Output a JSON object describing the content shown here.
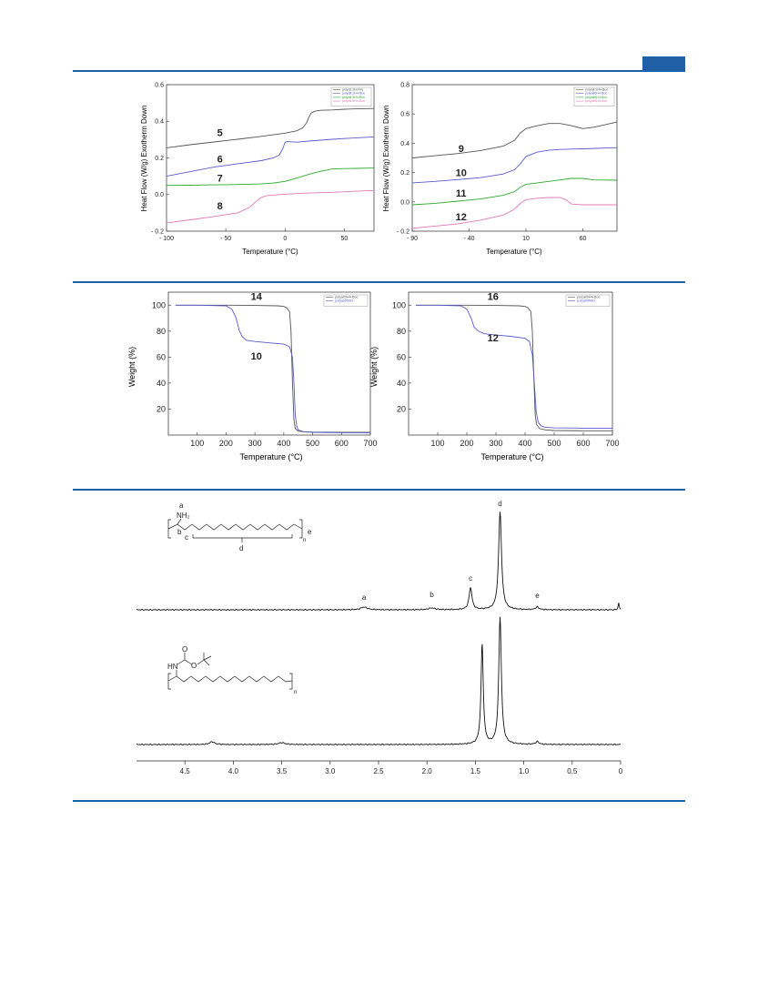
{
  "header": {
    "accent_color": "#1f5fa6"
  },
  "chart_data": [
    {
      "type": "line",
      "id": "dsc-left",
      "xlabel": "Temperature (°C)",
      "ylabel": "Heat Flow (W/g) Exotherm Down",
      "xlim": [
        -100,
        75
      ],
      "ylim": [
        -0.2,
        0.6
      ],
      "xticks": [
        -100,
        -50,
        0,
        50
      ],
      "yticks": [
        -0.2,
        0.0,
        0.2,
        0.4,
        0.6
      ],
      "xtick_labels": [
        "- 100",
        "- 50",
        "0",
        "50"
      ],
      "ytick_labels": [
        "- 0.2",
        "0.0",
        "0.2",
        "0.4",
        "0.6"
      ],
      "legend_position": "top-right",
      "series": [
        {
          "name": "poly(U.3H-Hn)",
          "label": "5",
          "label_at": [
            -55,
            0.32
          ],
          "color": "#555555",
          "x": [
            -100,
            -80,
            -60,
            -40,
            -20,
            0,
            10,
            15,
            18,
            20,
            22,
            25,
            30,
            40,
            50,
            60,
            75
          ],
          "y": [
            0.255,
            0.272,
            0.287,
            0.302,
            0.318,
            0.335,
            0.348,
            0.365,
            0.39,
            0.42,
            0.445,
            0.455,
            0.46,
            0.462,
            0.466,
            0.468,
            0.47
          ]
        },
        {
          "name": "polyall.1H4-Boc",
          "label": "6",
          "label_at": [
            -55,
            0.175
          ],
          "color": "#5a5acc",
          "x": [
            -100,
            -80,
            -60,
            -40,
            -20,
            -10,
            -5,
            -2,
            0,
            2,
            5,
            10,
            20,
            30,
            40,
            50,
            60,
            75
          ],
          "y": [
            0.1,
            0.125,
            0.15,
            0.168,
            0.185,
            0.2,
            0.215,
            0.25,
            0.285,
            0.29,
            0.288,
            0.286,
            0.292,
            0.297,
            0.302,
            0.306,
            0.31,
            0.315
          ]
        },
        {
          "name": "polyall.3H4-Boc",
          "label": "7",
          "label_at": [
            -55,
            0.07
          ],
          "color": "#2eaa2e",
          "x": [
            -100,
            -80,
            -60,
            -40,
            -20,
            -10,
            0,
            10,
            20,
            30,
            40,
            50,
            60,
            75
          ],
          "y": [
            0.05,
            0.051,
            0.053,
            0.055,
            0.058,
            0.063,
            0.072,
            0.09,
            0.11,
            0.127,
            0.14,
            0.142,
            0.143,
            0.145
          ]
        },
        {
          "name": "polyall.6H4-Boc",
          "label": "8",
          "label_at": [
            -55,
            -0.08
          ],
          "color": "#e07ab4",
          "x": [
            -100,
            -80,
            -60,
            -40,
            -30,
            -25,
            -20,
            -15,
            -10,
            0,
            20,
            40,
            60,
            75
          ],
          "y": [
            -0.155,
            -0.138,
            -0.12,
            -0.1,
            -0.07,
            -0.04,
            -0.015,
            -0.005,
            -0.003,
            0.002,
            0.008,
            0.012,
            0.018,
            0.022
          ]
        }
      ]
    },
    {
      "type": "line",
      "id": "dsc-right",
      "xlabel": "Temperature (°C)",
      "ylabel": "Heat Flow (W/g) Exotherm Down",
      "xlim": [
        -90,
        90
      ],
      "ylim": [
        -0.2,
        0.8
      ],
      "xticks": [
        -90,
        -40,
        10,
        60
      ],
      "yticks": [
        -0.2,
        0.0,
        0.2,
        0.4,
        0.6,
        0.8
      ],
      "xtick_labels": [
        "- 90",
        "- 40",
        "10",
        "60"
      ],
      "ytick_labels": [
        "- 0.2",
        "0.0",
        "0.2",
        "0.4",
        "0.6",
        "0.8"
      ],
      "legend_position": "top-right",
      "series": [
        {
          "name": "polyall.1H4-Boc",
          "label": "9",
          "label_at": [
            -47,
            0.34
          ],
          "color": "#555555",
          "x": [
            -90,
            -70,
            -50,
            -30,
            -10,
            0,
            5,
            10,
            20,
            30,
            40,
            50,
            60,
            70,
            90
          ],
          "y": [
            0.3,
            0.315,
            0.33,
            0.35,
            0.38,
            0.42,
            0.47,
            0.5,
            0.52,
            0.535,
            0.535,
            0.52,
            0.5,
            0.51,
            0.545
          ]
        },
        {
          "name": "polyall6H4-Boc",
          "label": "10",
          "label_at": [
            -47,
            0.175
          ],
          "color": "#5a5acc",
          "x": [
            -90,
            -70,
            -50,
            -30,
            -10,
            0,
            5,
            10,
            20,
            30,
            40,
            50,
            60,
            90
          ],
          "y": [
            0.13,
            0.14,
            0.152,
            0.165,
            0.19,
            0.22,
            0.26,
            0.31,
            0.34,
            0.352,
            0.358,
            0.36,
            0.362,
            0.37
          ]
        },
        {
          "name": "polyall6H4-Boc",
          "label": "11",
          "label_at": [
            -47,
            0.035
          ],
          "color": "#2eaa2e",
          "x": [
            -90,
            -70,
            -50,
            -30,
            -10,
            0,
            5,
            10,
            20,
            30,
            40,
            50,
            60,
            70,
            90
          ],
          "y": [
            -0.02,
            -0.01,
            0.005,
            0.02,
            0.045,
            0.07,
            0.1,
            0.12,
            0.13,
            0.14,
            0.15,
            0.16,
            0.16,
            0.15,
            0.148
          ]
        },
        {
          "name": "polyall3H4-Boc",
          "label": "12",
          "label_at": [
            -47,
            -0.125
          ],
          "color": "#e07ab4",
          "x": [
            -90,
            -70,
            -50,
            -30,
            -10,
            0,
            5,
            10,
            20,
            30,
            40,
            45,
            50,
            60,
            90
          ],
          "y": [
            -0.18,
            -0.165,
            -0.15,
            -0.125,
            -0.09,
            -0.05,
            -0.01,
            0.015,
            0.025,
            0.03,
            0.03,
            0.015,
            -0.015,
            -0.02,
            -0.02
          ]
        }
      ]
    },
    {
      "type": "line",
      "id": "tga-left",
      "xlabel": "Temperature (°C)",
      "ylabel": "Weight (%)",
      "xlim": [
        0,
        700
      ],
      "ylim": [
        0,
        110
      ],
      "xticks": [
        100,
        200,
        300,
        400,
        500,
        600,
        700
      ],
      "yticks": [
        20,
        40,
        60,
        80,
        100
      ],
      "xtick_labels": [
        "100",
        "200",
        "300",
        "400",
        "500",
        "600",
        "700"
      ],
      "ytick_labels": [
        "20",
        "40",
        "60",
        "80",
        "100"
      ],
      "legend_position": "top-right",
      "series": [
        {
          "name": "polyall9H4-Boc",
          "label": "14",
          "label_at": [
            305,
            104
          ],
          "color": "#555555",
          "x": [
            25,
            100,
            200,
            300,
            380,
            400,
            410,
            420,
            425,
            430,
            435,
            440,
            450,
            470,
            500,
            600,
            700
          ],
          "y": [
            100,
            100,
            100,
            99.8,
            99.5,
            99,
            98,
            95,
            80,
            40,
            12,
            5,
            3,
            2.5,
            2.3,
            2.2,
            2.2
          ]
        },
        {
          "name": "polyall9NH2",
          "label": "10",
          "label_at": [
            305,
            58
          ],
          "color": "#5a5acc",
          "x": [
            25,
            100,
            200,
            220,
            235,
            245,
            255,
            270,
            300,
            350,
            400,
            420,
            430,
            435,
            440,
            445,
            450,
            470,
            500,
            600,
            700
          ],
          "y": [
            100,
            100,
            99.5,
            97,
            90,
            81,
            76,
            73,
            72,
            71,
            70,
            68,
            60,
            40,
            15,
            7,
            4,
            2.5,
            2,
            1.8,
            1.8
          ]
        }
      ]
    },
    {
      "type": "line",
      "id": "tga-right",
      "xlabel": "Temperature (°C)",
      "ylabel": "Weight (%)",
      "xlim": [
        0,
        700
      ],
      "ylim": [
        0,
        110
      ],
      "xticks": [
        100,
        200,
        300,
        400,
        500,
        600,
        700
      ],
      "yticks": [
        20,
        40,
        60,
        80,
        100
      ],
      "xtick_labels": [
        "100",
        "200",
        "300",
        "400",
        "500",
        "600",
        "700"
      ],
      "ytick_labels": [
        "20",
        "40",
        "60",
        "80",
        "100"
      ],
      "legend_position": "top-right",
      "series": [
        {
          "name": "polyall9H4-Boc",
          "label": "16",
          "label_at": [
            290,
            104
          ],
          "color": "#555555",
          "x": [
            25,
            100,
            200,
            300,
            380,
            400,
            410,
            420,
            425,
            430,
            435,
            440,
            450,
            470,
            500,
            600,
            700
          ],
          "y": [
            100,
            100,
            100,
            99.8,
            99.5,
            99,
            98,
            95,
            80,
            45,
            15,
            8,
            5,
            4,
            3.5,
            3.3,
            3.3
          ]
        },
        {
          "name": "polyall9NH2",
          "label": "12",
          "label_at": [
            290,
            72
          ],
          "color": "#5a5acc",
          "x": [
            25,
            100,
            180,
            200,
            215,
            225,
            240,
            260,
            300,
            350,
            400,
            415,
            425,
            432,
            438,
            445,
            455,
            470,
            500,
            600,
            700
          ],
          "y": [
            100,
            100,
            99.5,
            97,
            90,
            83,
            80,
            78,
            77,
            76,
            74.5,
            72,
            62,
            40,
            18,
            10,
            7,
            6,
            5.5,
            5.3,
            5.3
          ]
        }
      ]
    },
    {
      "type": "line",
      "id": "nmr",
      "xlabel": "",
      "xlim": [
        5,
        0
      ],
      "x_reversed": true,
      "xticks": [
        4.5,
        4.0,
        3.5,
        3.0,
        2.5,
        2.0,
        1.5,
        1.0,
        0.5,
        0
      ],
      "xtick_labels": [
        "4.5",
        "4.0",
        "3.5",
        "3.0",
        "2.5",
        "2.0",
        "1.5",
        "1.0",
        "0.5",
        "0"
      ],
      "spectra": [
        {
          "name": "top",
          "peaks": [
            {
              "x": 2.65,
              "h": 3,
              "w": 0.04
            },
            {
              "x": 1.95,
              "h": 2,
              "w": 0.04
            },
            {
              "x": 1.55,
              "h": 24,
              "w": 0.018
            },
            {
              "x": 1.245,
              "h": 108,
              "w": 0.018
            },
            {
              "x": 0.86,
              "h": 3,
              "w": 0.02
            },
            {
              "x": 0.02,
              "h": 8,
              "w": 0.006
            }
          ],
          "labels": [
            {
              "text": "a",
              "x": 2.65,
              "above": 8
            },
            {
              "text": "b",
              "x": 1.95,
              "above": 12
            },
            {
              "text": "c",
              "x": 1.55,
              "above": 8
            },
            {
              "text": "d",
              "x": 1.245,
              "above": 6
            },
            {
              "text": "e",
              "x": 0.86,
              "above": 10
            }
          ]
        },
        {
          "name": "bottom",
          "peaks": [
            {
              "x": 4.22,
              "h": 3,
              "w": 0.03
            },
            {
              "x": 3.5,
              "h": 2,
              "w": 0.04
            },
            {
              "x": 1.43,
              "h": 110,
              "w": 0.014
            },
            {
              "x": 1.245,
              "h": 140,
              "w": 0.016
            },
            {
              "x": 0.86,
              "h": 3,
              "w": 0.02
            }
          ],
          "labels": []
        }
      ],
      "structure_top": {
        "atoms": [
          "a",
          "NH₂",
          "b",
          "c",
          "d",
          "n",
          "e"
        ]
      },
      "structure_bottom": {
        "atoms": [
          "O",
          "HN",
          "O",
          "n"
        ]
      }
    }
  ]
}
